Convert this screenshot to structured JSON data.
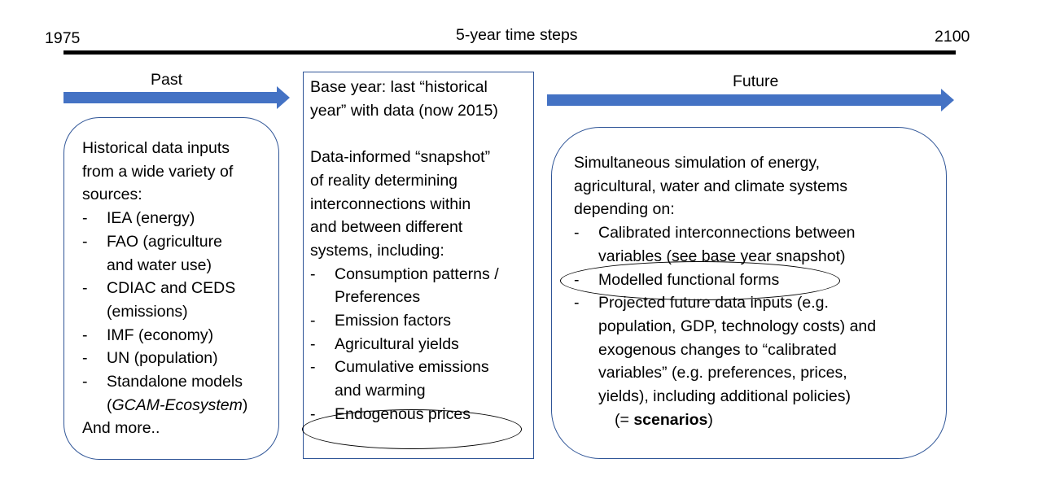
{
  "timeline": {
    "start": "1975",
    "label": "5-year time steps",
    "end": "2100"
  },
  "past": {
    "label": "Past",
    "box": {
      "intro": [
        "Historical data inputs",
        "from a wide variety of",
        "sources:"
      ],
      "items": [
        [
          "IEA (energy)"
        ],
        [
          "FAO (agriculture",
          "and water use)"
        ],
        [
          "CDIAC and CEDS",
          "(emissions)"
        ],
        [
          "IMF (economy)"
        ],
        [
          "UN (population)"
        ],
        [
          "Standalone models"
        ]
      ],
      "item_italic_open": "(",
      "item_italic": "GCAM-Ecosystem",
      "item_italic_close": ")",
      "outro": "And more.."
    }
  },
  "base": {
    "title": [
      "Base year: last “historical",
      "year” with data (now 2015)"
    ],
    "intro": [
      "Data-informed “snapshot”",
      "of reality determining",
      "interconnections within",
      "and between different",
      "systems, including:"
    ],
    "items": [
      [
        "Consumption patterns /",
        "Preferences"
      ],
      [
        "Emission factors"
      ],
      [
        "Agricultural yields"
      ],
      [
        "Cumulative emissions",
        "and warming"
      ],
      [
        "Endogenous prices"
      ]
    ]
  },
  "future": {
    "label": "Future",
    "box": {
      "intro": [
        "Simultaneous simulation of energy,",
        "agricultural, water and climate systems",
        "depending on:"
      ],
      "items": [
        [
          "Calibrated interconnections between",
          "variables (see base year snapshot)"
        ],
        [
          "Modelled functional forms"
        ],
        [
          "Projected future data inputs (e.g.",
          "population, GDP, technology costs) and",
          "exogenous changes to “calibrated",
          "variables” (e.g. preferences, prices,",
          "yields), including additional policies)"
        ]
      ],
      "scenario_open": "(= ",
      "scenario_bold": "scenarios",
      "scenario_close": ")"
    }
  },
  "colors": {
    "arrow": "#4472c4",
    "box_border": "#2f5597"
  }
}
